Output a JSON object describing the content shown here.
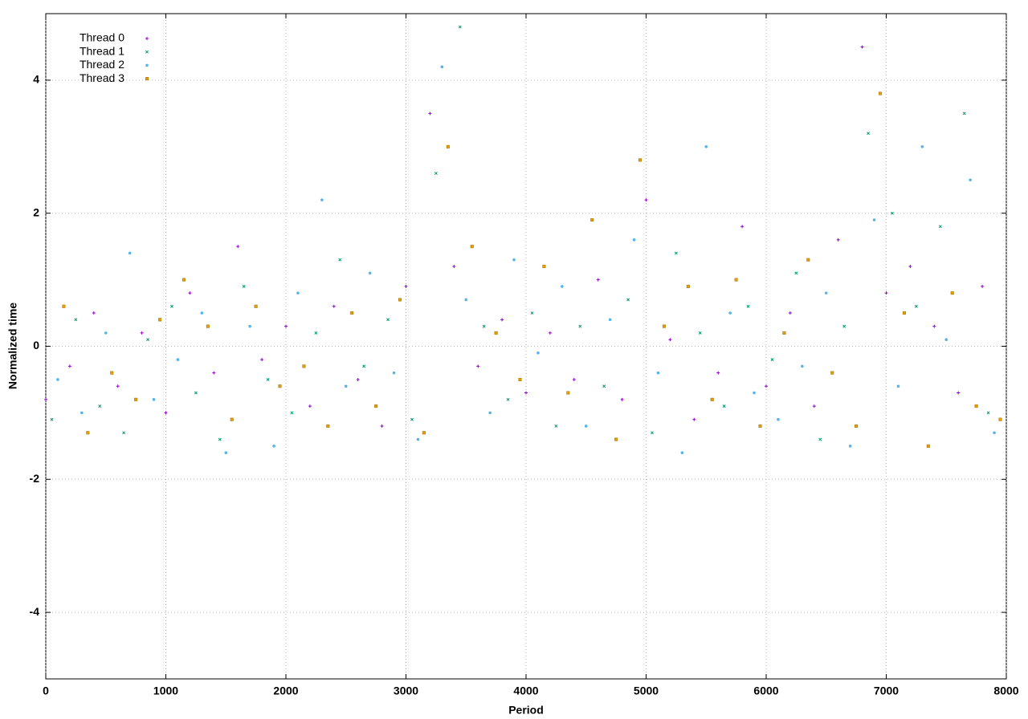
{
  "chart_data": {
    "type": "scatter",
    "x_label": "Period",
    "y_label": "Normalized time",
    "xlim": [
      0,
      8000
    ],
    "ylim": [
      -5,
      5
    ],
    "xticks": [
      0,
      1000,
      2000,
      3000,
      4000,
      5000,
      6000,
      7000,
      8000
    ],
    "yticks": [
      -4,
      -2,
      0,
      2,
      4
    ],
    "grid": true,
    "legend": "top-left",
    "series": [
      {
        "name": "Thread 0",
        "color": "#9400d3",
        "x": [
          0,
          200,
          400,
          600,
          800,
          1000,
          1200,
          1400,
          1600,
          1800,
          2000,
          2200,
          2400,
          2600,
          2800,
          3000,
          3200,
          3400,
          3600,
          3800,
          4000,
          4200,
          4400,
          4600,
          4800,
          5000,
          5200,
          5400,
          5600,
          5800,
          6000,
          6200,
          6400,
          6600,
          6800,
          7000,
          7200,
          7400,
          7600,
          7800
        ],
        "values": [
          -0.8,
          -0.3,
          0.5,
          -0.6,
          0.2,
          -1.0,
          0.8,
          -0.4,
          1.5,
          -0.2,
          0.3,
          -0.9,
          0.6,
          -0.5,
          -1.2,
          0.9,
          3.5,
          1.2,
          -0.3,
          0.4,
          -0.7,
          0.2,
          -0.5,
          1.0,
          -0.8,
          2.2,
          0.1,
          -1.1,
          -0.4,
          1.8,
          -0.6,
          0.5,
          -0.9,
          1.6,
          4.5,
          0.8,
          1.2,
          0.3,
          -0.7,
          0.9
        ]
      },
      {
        "name": "Thread 1",
        "color": "#009e73",
        "x": [
          50,
          250,
          450,
          650,
          850,
          1050,
          1250,
          1450,
          1650,
          1850,
          2050,
          2250,
          2450,
          2650,
          2850,
          3050,
          3250,
          3450,
          3650,
          3850,
          4050,
          4250,
          4450,
          4650,
          4850,
          5050,
          5250,
          5450,
          5650,
          5850,
          6050,
          6250,
          6450,
          6650,
          6850,
          7050,
          7250,
          7450,
          7650,
          7850
        ],
        "values": [
          -1.1,
          0.4,
          -0.9,
          -1.3,
          0.1,
          0.6,
          -0.7,
          -1.4,
          0.9,
          -0.5,
          -1.0,
          0.2,
          1.3,
          -0.3,
          0.4,
          -1.1,
          2.6,
          4.8,
          0.3,
          -0.8,
          0.5,
          -1.2,
          0.3,
          -0.6,
          0.7,
          -1.3,
          1.4,
          0.2,
          -0.9,
          0.6,
          -0.2,
          1.1,
          -1.4,
          0.3,
          3.2,
          2.0,
          0.6,
          1.8,
          3.5,
          -1.0
        ]
      },
      {
        "name": "Thread 2",
        "color": "#56b4e9",
        "x": [
          100,
          300,
          500,
          700,
          900,
          1100,
          1300,
          1500,
          1700,
          1900,
          2100,
          2300,
          2500,
          2700,
          2900,
          3100,
          3300,
          3500,
          3700,
          3900,
          4100,
          4300,
          4500,
          4700,
          4900,
          5100,
          5300,
          5500,
          5700,
          5900,
          6100,
          6300,
          6500,
          6700,
          6900,
          7100,
          7300,
          7500,
          7700,
          7900
        ],
        "values": [
          -0.5,
          -1.0,
          0.2,
          1.4,
          -0.8,
          -0.2,
          0.5,
          -1.6,
          0.3,
          -1.5,
          0.8,
          2.2,
          -0.6,
          1.1,
          -0.4,
          -1.4,
          4.2,
          0.7,
          -1.0,
          1.3,
          -0.1,
          0.9,
          -1.2,
          0.4,
          1.6,
          -0.4,
          -1.6,
          3.0,
          0.5,
          -0.7,
          -1.1,
          -0.3,
          0.8,
          -1.5,
          1.9,
          -0.6,
          3.0,
          0.1,
          2.5,
          -1.3
        ]
      },
      {
        "name": "Thread 3",
        "color": "#e69f00",
        "x": [
          150,
          350,
          550,
          750,
          950,
          1150,
          1350,
          1550,
          1750,
          1950,
          2150,
          2350,
          2550,
          2750,
          2950,
          3150,
          3350,
          3550,
          3750,
          3950,
          4150,
          4350,
          4550,
          4750,
          4950,
          5150,
          5350,
          5550,
          5750,
          5950,
          6150,
          6350,
          6550,
          6750,
          6950,
          7150,
          7350,
          7550,
          7750,
          7950
        ],
        "values": [
          0.6,
          -1.3,
          -0.4,
          -0.8,
          0.4,
          1.0,
          0.3,
          -1.1,
          0.6,
          -0.6,
          -0.3,
          -1.2,
          0.5,
          -0.9,
          0.7,
          -1.3,
          3.0,
          1.5,
          0.2,
          -0.5,
          1.2,
          -0.7,
          1.9,
          -1.4,
          2.8,
          0.3,
          0.9,
          -0.8,
          1.0,
          -1.2,
          0.2,
          1.3,
          -0.4,
          -1.2,
          3.8,
          0.5,
          -1.5,
          0.8,
          -0.9,
          -1.1
        ]
      }
    ]
  }
}
